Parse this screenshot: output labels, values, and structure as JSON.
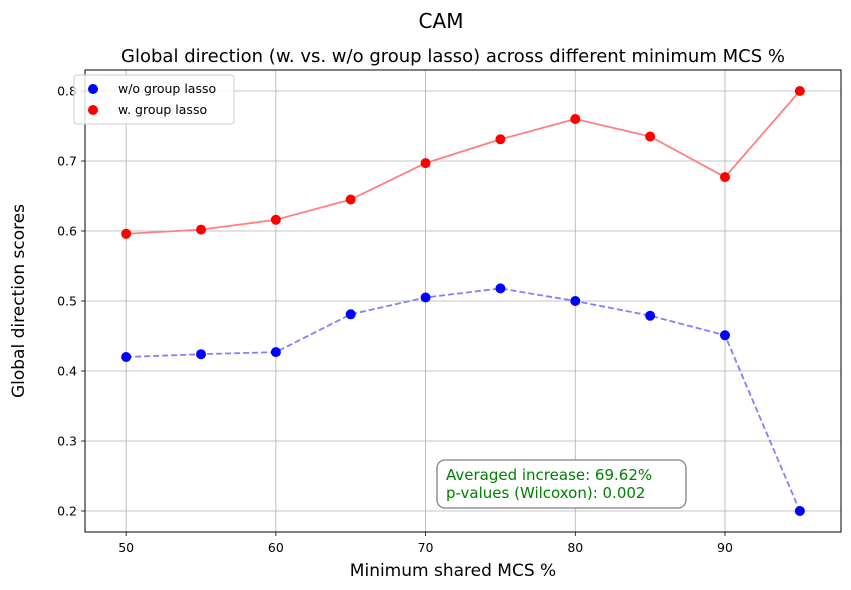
{
  "chart_data": {
    "type": "line",
    "suptitle": "CAM",
    "title": "Global direction (w. vs. w/o group lasso) across different minimum MCS %",
    "xlabel": "Minimum shared MCS %",
    "ylabel": "Global direction scores",
    "x": [
      50,
      55,
      60,
      65,
      70,
      75,
      80,
      85,
      90,
      95
    ],
    "xlim": [
      47.25,
      97.75
    ],
    "ylim": [
      0.17,
      0.83
    ],
    "xticks": [
      50,
      60,
      70,
      80,
      90
    ],
    "xtick_labels": [
      "50",
      "60",
      "70",
      "80",
      "90"
    ],
    "yticks": [
      0.2,
      0.3,
      0.4,
      0.5,
      0.6,
      0.7,
      0.8
    ],
    "ytick_labels": [
      "0.2",
      "0.3",
      "0.4",
      "0.5",
      "0.6",
      "0.7",
      "0.8"
    ],
    "grid": true,
    "legend_position": "top-left",
    "series": [
      {
        "name": "w/o group lasso",
        "color": "#0000ff",
        "line_color": "#7f7fff",
        "line_style": "dashed",
        "values": [
          0.42,
          0.424,
          0.427,
          0.481,
          0.505,
          0.518,
          0.5,
          0.479,
          0.451,
          0.2
        ]
      },
      {
        "name": "w. group lasso",
        "color": "#ff0000",
        "line_color": "#ff8080",
        "line_style": "solid",
        "values": [
          0.596,
          0.602,
          0.616,
          0.645,
          0.697,
          0.731,
          0.76,
          0.735,
          0.677,
          0.8
        ]
      }
    ],
    "annotation": {
      "line1": "Averaged increase: 69.62%",
      "line2": "p-values (Wilcoxon): 0.002",
      "color": "#008000"
    }
  }
}
